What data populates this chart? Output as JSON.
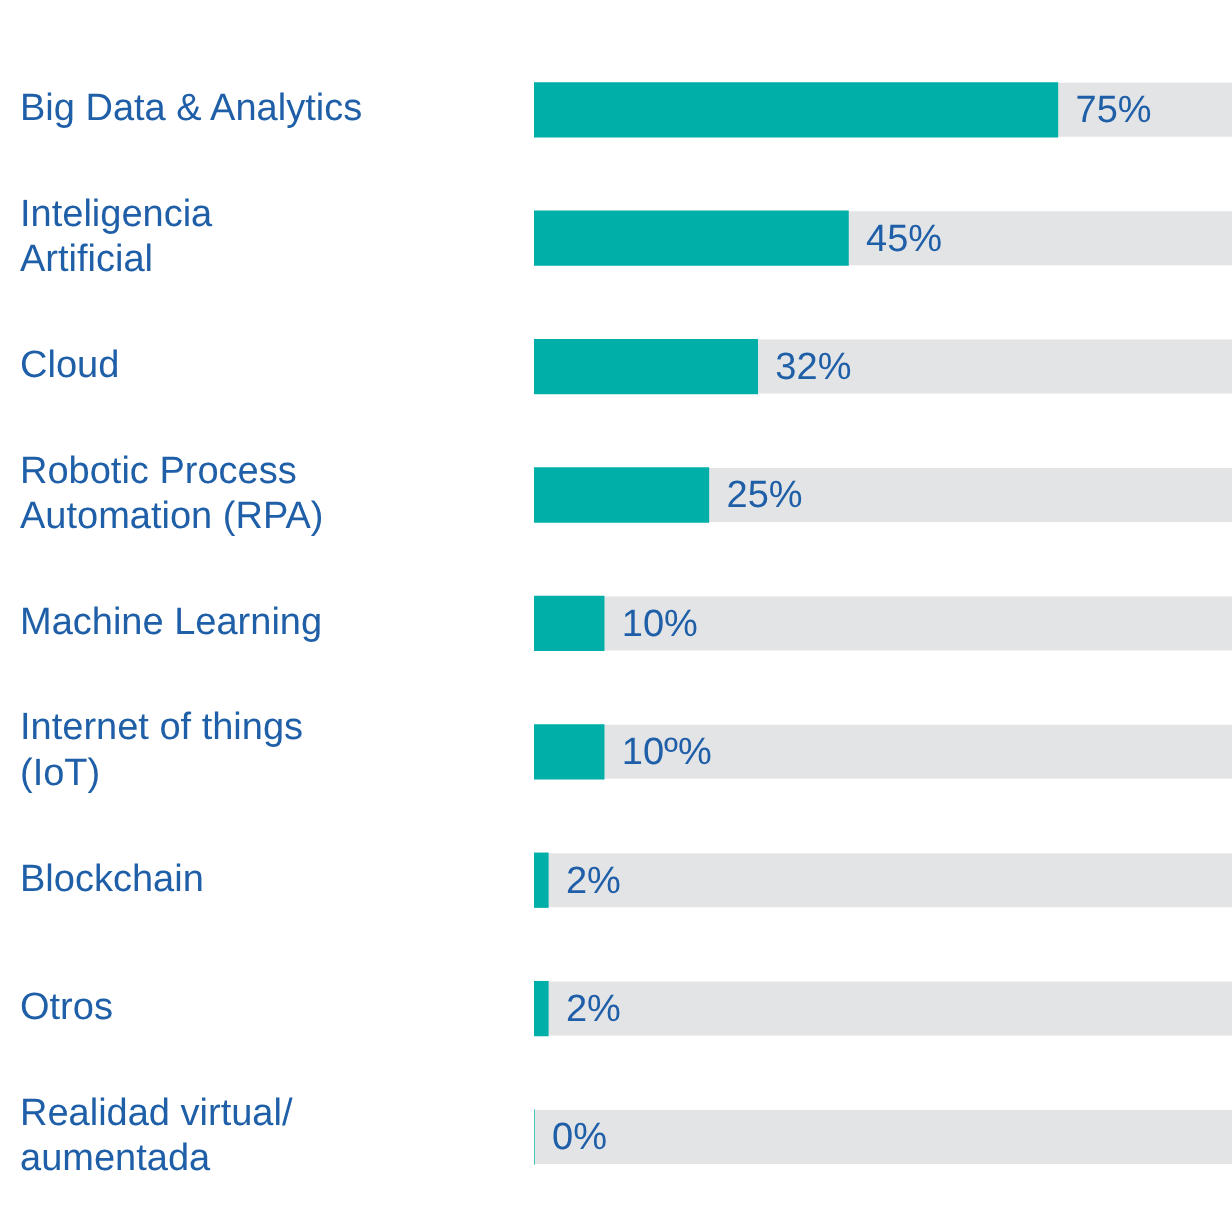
{
  "chart_data": {
    "type": "bar",
    "orientation": "horizontal",
    "categories": [
      "Big Data & Analytics",
      "Inteligencia Artificial",
      "Cloud",
      "Robotic Process Automation (RPA)",
      "Machine Learning",
      "Internet of things (IoT)",
      "Blockchain",
      "Otros",
      "Realidad virtual/ aumentada"
    ],
    "values": [
      75,
      45,
      32,
      25,
      10,
      10,
      2,
      2,
      0
    ],
    "value_labels": [
      "75%",
      "45%",
      "32%",
      "25%",
      "10%",
      "10º%",
      "2%",
      "2%",
      "0%"
    ],
    "color": "#00b0a8",
    "xlim": [
      0,
      100
    ],
    "tick_labels": "y",
    "legend": false
  }
}
